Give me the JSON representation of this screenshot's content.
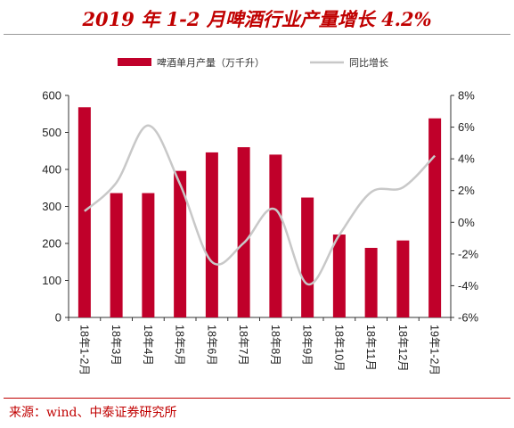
{
  "title": "2019 年 1-2 月啤酒行业产量增长 4.2%",
  "source": "来源：wind、中泰证券研究所",
  "colors": {
    "bar": "#c0002a",
    "line": "#c8c8c8",
    "title": "#c00000"
  },
  "chart_data": {
    "type": "bar+line",
    "categories": [
      "18年1-2月",
      "18年3月",
      "18年4月",
      "18年5月",
      "18年6月",
      "18年7月",
      "18年8月",
      "18年9月",
      "18年10月",
      "18年11月",
      "18年12月",
      "19年1-2月"
    ],
    "series": [
      {
        "name": "啤酒单月产量（万千升）",
        "type": "bar",
        "axis": "left",
        "values": [
          568,
          336,
          336,
          396,
          446,
          460,
          440,
          324,
          224,
          188,
          208,
          538
        ]
      },
      {
        "name": "同比增长",
        "type": "line",
        "axis": "right",
        "unit": "%",
        "values": [
          0.7,
          2.5,
          6.1,
          2.4,
          -2.5,
          -1.3,
          0.8,
          -3.9,
          -0.8,
          1.9,
          2.2,
          4.2
        ]
      }
    ],
    "left_axis": {
      "min": 0,
      "max": 600,
      "ticks": [
        "0",
        "100",
        "200",
        "300",
        "400",
        "500",
        "600"
      ]
    },
    "right_axis": {
      "min": -6,
      "max": 8,
      "ticks": [
        "-6%",
        "-4%",
        "-2%",
        "0%",
        "2%",
        "4%",
        "6%",
        "8%"
      ]
    },
    "legend_position": "top-center",
    "grid": false
  }
}
